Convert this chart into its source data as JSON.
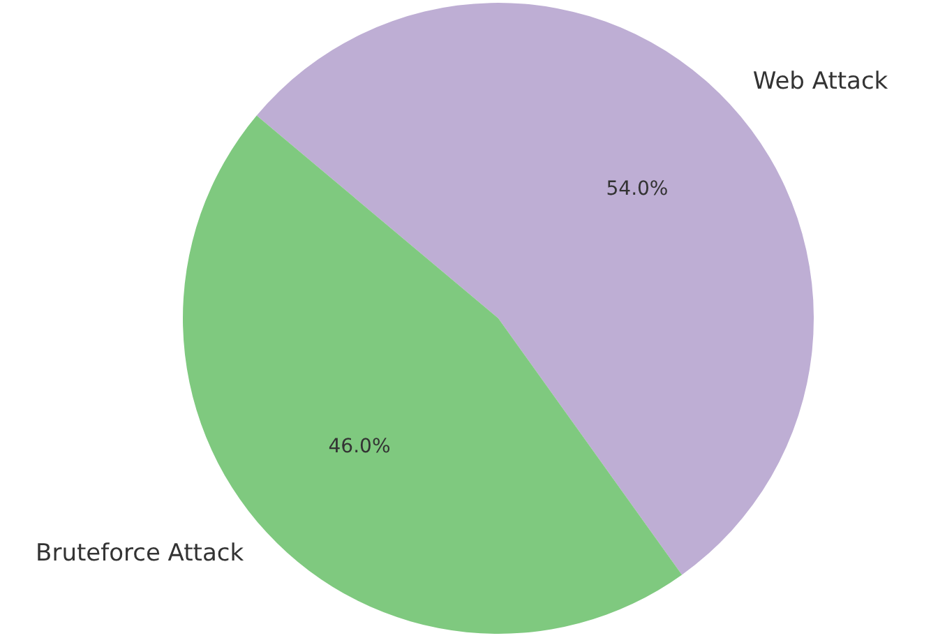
{
  "chart_data": {
    "type": "pie",
    "categories": [
      "Web Attack",
      "Bruteforce Attack"
    ],
    "values": [
      54,
      46
    ],
    "colors": [
      "#beaed4",
      "#7fc97f"
    ],
    "value_labels": [
      "54.0%",
      "46.0%"
    ],
    "legend": false
  }
}
